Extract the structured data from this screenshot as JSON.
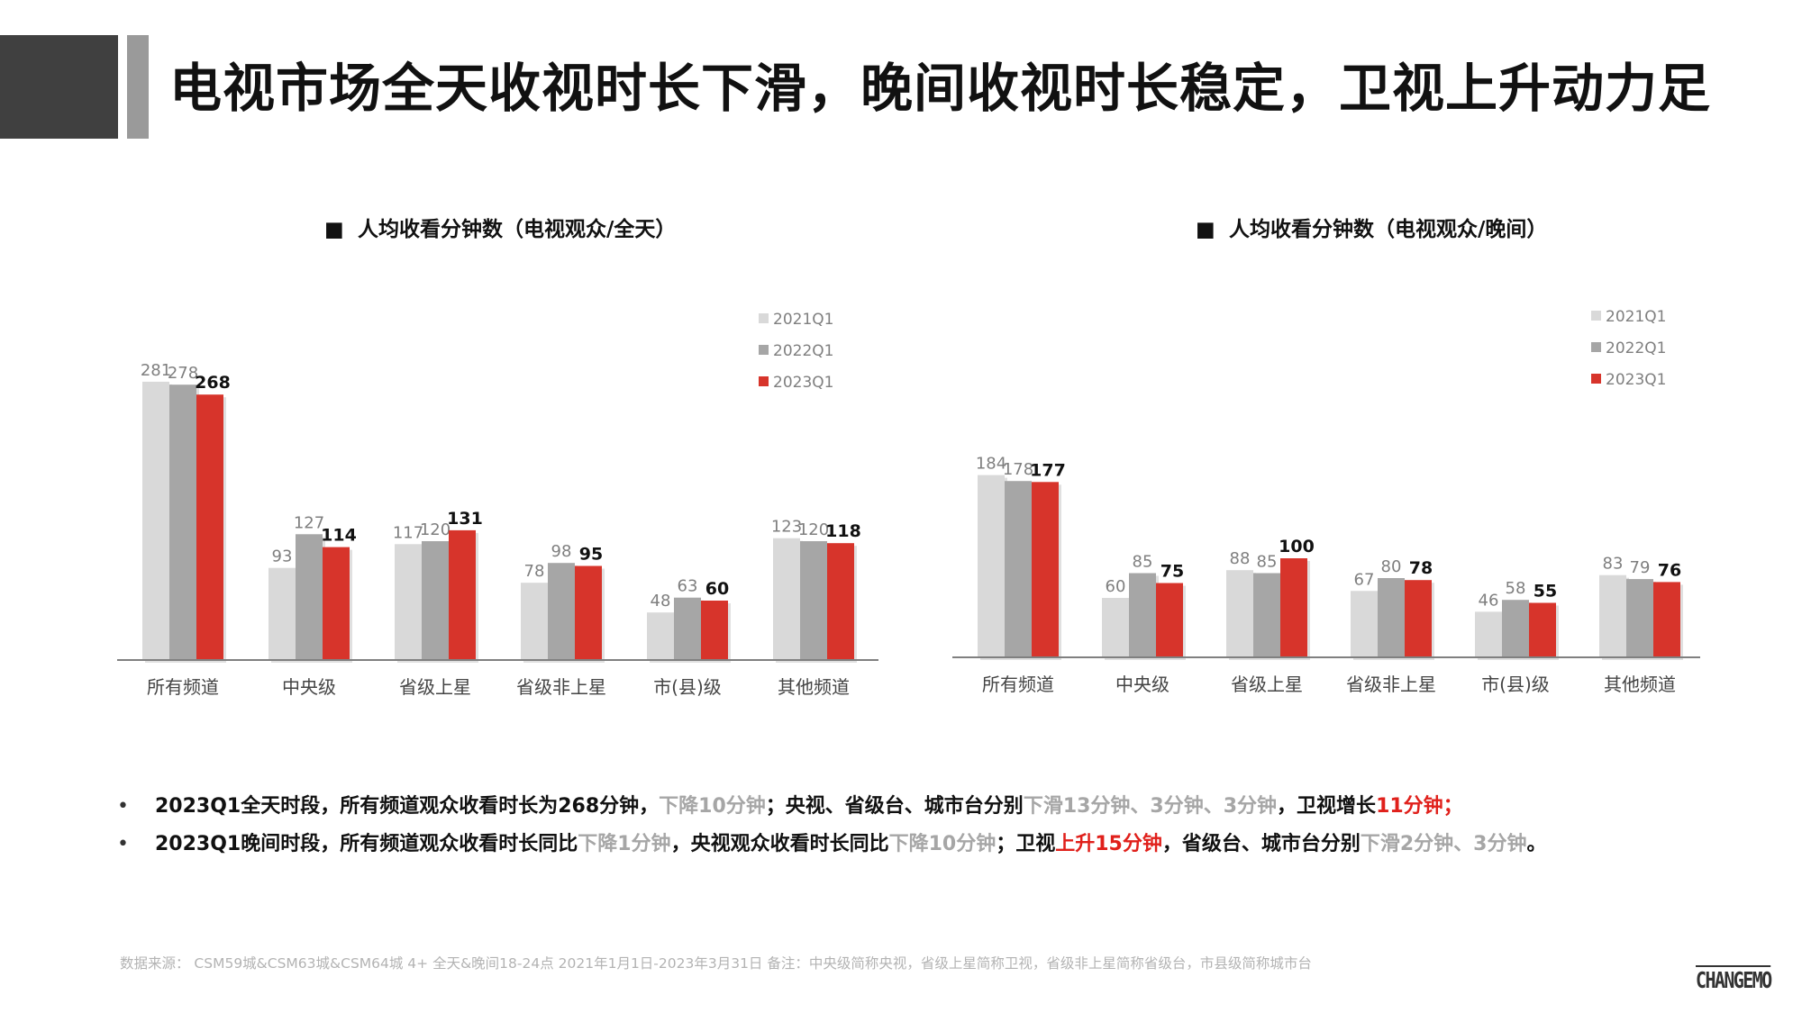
{
  "title": "电视市场全天收视时长下滑，晚间收视时长稳定，卫视上升动力足",
  "colors": {
    "y2021": "#d9d9d9",
    "y2022": "#a6a6a6",
    "y2023": "#d7342b",
    "axis": "#808080"
  },
  "chart_data": [
    {
      "type": "bar",
      "title": "人均收看分钟数（电视观众/全天）",
      "title_marker": "■",
      "categories": [
        "所有频道",
        "中央级",
        "省级上星",
        "省级非上星",
        "市(县)级",
        "其他频道"
      ],
      "series": [
        {
          "name": "2021Q1",
          "values": [
            281,
            93,
            117,
            78,
            48,
            123
          ]
        },
        {
          "name": "2022Q1",
          "values": [
            278,
            127,
            120,
            98,
            63,
            120
          ]
        },
        {
          "name": "2023Q1",
          "values": [
            268,
            114,
            131,
            95,
            60,
            118
          ]
        }
      ],
      "ylim": [
        0,
        290
      ],
      "grid": false,
      "legend": "right"
    },
    {
      "type": "bar",
      "title": "人均收看分钟数（电视观众/晚间）",
      "title_marker": "■",
      "categories": [
        "所有频道",
        "中央级",
        "省级上星",
        "省级非上星",
        "市(县)级",
        "其他频道"
      ],
      "series": [
        {
          "name": "2021Q1",
          "values": [
            184,
            60,
            88,
            67,
            46,
            83
          ]
        },
        {
          "name": "2022Q1",
          "values": [
            178,
            85,
            85,
            80,
            58,
            79
          ]
        },
        {
          "name": "2023Q1",
          "values": [
            177,
            75,
            100,
            78,
            55,
            76
          ]
        }
      ],
      "ylim": [
        0,
        190
      ],
      "grid": false,
      "legend": "right"
    }
  ],
  "notes": [
    {
      "bullet": "•",
      "parts": [
        {
          "text": "2023Q1全天时段，所有频道观众收看时长为268分钟，",
          "style": "normal"
        },
        {
          "text": "下降10分钟",
          "style": "gray"
        },
        {
          "text": "；央视、省级台、城市台分别",
          "style": "normal"
        },
        {
          "text": "下滑13分钟、3分钟、3分钟",
          "style": "gray"
        },
        {
          "text": "，卫视增长",
          "style": "normal"
        },
        {
          "text": "11分钟；",
          "style": "red"
        }
      ]
    },
    {
      "bullet": "•",
      "parts": [
        {
          "text": "2023Q1晚间时段，所有频道观众收看时长同比",
          "style": "normal"
        },
        {
          "text": "下降1分钟",
          "style": "gray"
        },
        {
          "text": "，央视观众收看时长同比",
          "style": "normal"
        },
        {
          "text": "下降10分钟",
          "style": "gray"
        },
        {
          "text": "；卫视",
          "style": "normal"
        },
        {
          "text": "上升15分钟",
          "style": "red"
        },
        {
          "text": "，省级台、城市台分别",
          "style": "normal"
        },
        {
          "text": "下滑2分钟、3分钟",
          "style": "gray"
        },
        {
          "text": "。",
          "style": "normal"
        }
      ]
    }
  ],
  "source": "数据来源：  CSM59城&CSM63城&CSM64城  4+  全天&晚间18-24点   2021年1月1日-2023年3月31日     备注：中央级简称央视，省级上星简称卫视，省级非上星简称省级台，市县级简称城市台",
  "logo": "CHANGEMO"
}
